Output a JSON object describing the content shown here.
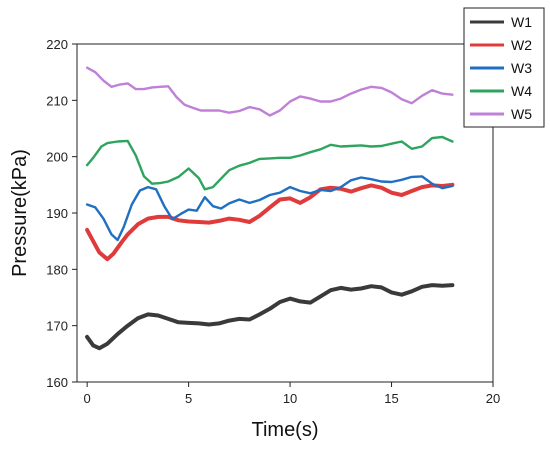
{
  "chart_data": {
    "type": "line",
    "title": "",
    "xlabel": "Time(s)",
    "ylabel": "Pressure(kPa)",
    "xlim": [
      -0.5,
      20
    ],
    "ylim": [
      160,
      220
    ],
    "xticks": [
      0,
      5,
      10,
      15,
      20
    ],
    "yticks": [
      160,
      170,
      180,
      190,
      200,
      210,
      220
    ],
    "grid": false,
    "legend_position": "top-right",
    "series": [
      {
        "name": "W1",
        "color": "#3a3a3a",
        "x": [
          0,
          0.3,
          0.6,
          1,
          1.5,
          2,
          2.5,
          3,
          3.5,
          4,
          4.5,
          5,
          5.5,
          6,
          6.5,
          7,
          7.5,
          8,
          8.5,
          9,
          9.5,
          10,
          10.5,
          11,
          11.5,
          12,
          12.5,
          13,
          13.5,
          14,
          14.5,
          15,
          15.5,
          16,
          16.5,
          17,
          17.5,
          18
        ],
        "values": [
          168,
          166.5,
          166,
          166.8,
          168.5,
          170,
          171.3,
          172,
          171.8,
          171.2,
          170.6,
          170.5,
          170.4,
          170.2,
          170.4,
          170.9,
          171.2,
          171.1,
          172,
          173,
          174.2,
          174.8,
          174.3,
          174.1,
          175.2,
          176.3,
          176.7,
          176.4,
          176.6,
          177,
          176.8,
          175.9,
          175.5,
          176.1,
          176.9,
          177.2,
          177.1,
          177.2
        ]
      },
      {
        "name": "W2",
        "color": "#e03b3b",
        "x": [
          0,
          0.3,
          0.6,
          1,
          1.3,
          1.7,
          2,
          2.5,
          3,
          3.5,
          4,
          4.5,
          5,
          5.5,
          6,
          6.5,
          7,
          7.5,
          8,
          8.5,
          9,
          9.5,
          10,
          10.5,
          11,
          11.5,
          12,
          12.5,
          13,
          13.5,
          14,
          14.5,
          15,
          15.5,
          16,
          16.5,
          17,
          17.5,
          18
        ],
        "values": [
          187,
          185,
          183,
          181.8,
          182.8,
          184.8,
          186.2,
          188,
          189,
          189.3,
          189.3,
          188.7,
          188.5,
          188.4,
          188.3,
          188.6,
          189,
          188.8,
          188.4,
          189.5,
          191,
          192.4,
          192.6,
          191.8,
          192.8,
          194.2,
          194.5,
          194.3,
          193.8,
          194.4,
          194.9,
          194.5,
          193.6,
          193.2,
          193.9,
          194.6,
          194.9,
          194.8,
          195
        ]
      },
      {
        "name": "W3",
        "color": "#1f6fc2",
        "x": [
          0,
          0.4,
          0.8,
          1.2,
          1.5,
          1.8,
          2.2,
          2.6,
          3,
          3.4,
          3.8,
          4.2,
          4.6,
          5,
          5.4,
          5.8,
          6.2,
          6.6,
          7,
          7.5,
          8,
          8.5,
          9,
          9.5,
          10,
          10.5,
          11,
          11.5,
          12,
          12.5,
          13,
          13.5,
          14,
          14.5,
          15,
          15.5,
          16,
          16.5,
          17,
          17.5,
          18
        ],
        "values": [
          191.5,
          191,
          189,
          186.2,
          185.2,
          187.5,
          191.5,
          194,
          194.6,
          194.2,
          191.2,
          188.9,
          189.8,
          190.6,
          190.4,
          192.8,
          191.2,
          190.8,
          191.7,
          192.4,
          191.8,
          192.3,
          193.2,
          193.6,
          194.6,
          193.9,
          193.5,
          194.1,
          193.9,
          194.6,
          195.8,
          196.3,
          196,
          195.6,
          195.5,
          195.9,
          196.4,
          196.5,
          195.2,
          194.4,
          194.8
        ]
      },
      {
        "name": "W4",
        "color": "#2ea45f",
        "x": [
          0,
          0.3,
          0.7,
          1,
          1.5,
          2,
          2.4,
          2.8,
          3.2,
          3.6,
          4,
          4.5,
          5,
          5.5,
          5.8,
          6.2,
          6.6,
          7,
          7.5,
          8,
          8.5,
          9,
          9.5,
          10,
          10.5,
          11,
          11.5,
          12,
          12.5,
          13,
          13.5,
          14,
          14.5,
          15,
          15.5,
          16,
          16.5,
          17,
          17.5,
          18
        ],
        "values": [
          198.5,
          199.8,
          201.8,
          202.4,
          202.7,
          202.8,
          200.2,
          196.5,
          195.2,
          195.3,
          195.6,
          196.4,
          197.9,
          196.2,
          194.2,
          194.6,
          196.1,
          197.6,
          198.4,
          198.9,
          199.6,
          199.7,
          199.8,
          199.8,
          200.2,
          200.8,
          201.3,
          202.1,
          201.8,
          201.9,
          202,
          201.8,
          201.9,
          202.3,
          202.7,
          201.4,
          201.8,
          203.3,
          203.5,
          202.7
        ]
      },
      {
        "name": "W5",
        "color": "#c080d8",
        "x": [
          0,
          0.4,
          0.8,
          1.2,
          1.6,
          2,
          2.4,
          2.8,
          3.2,
          3.6,
          4,
          4.4,
          4.8,
          5.2,
          5.6,
          6,
          6.5,
          7,
          7.5,
          8,
          8.5,
          9,
          9.5,
          10,
          10.5,
          11,
          11.5,
          12,
          12.5,
          13,
          13.5,
          14,
          14.5,
          15,
          15.5,
          16,
          16.5,
          17,
          17.5,
          18
        ],
        "values": [
          215.8,
          215,
          213.5,
          212.4,
          212.8,
          213,
          212,
          212,
          212.3,
          212.4,
          212.5,
          210.6,
          209.2,
          208.7,
          208.2,
          208.2,
          208.2,
          207.8,
          208.1,
          208.8,
          208.4,
          207.3,
          208.2,
          209.8,
          210.7,
          210.3,
          209.8,
          209.8,
          210.3,
          211.2,
          211.9,
          212.4,
          212.2,
          211.4,
          210.2,
          209.5,
          210.8,
          211.8,
          211.2,
          211
        ]
      }
    ]
  }
}
